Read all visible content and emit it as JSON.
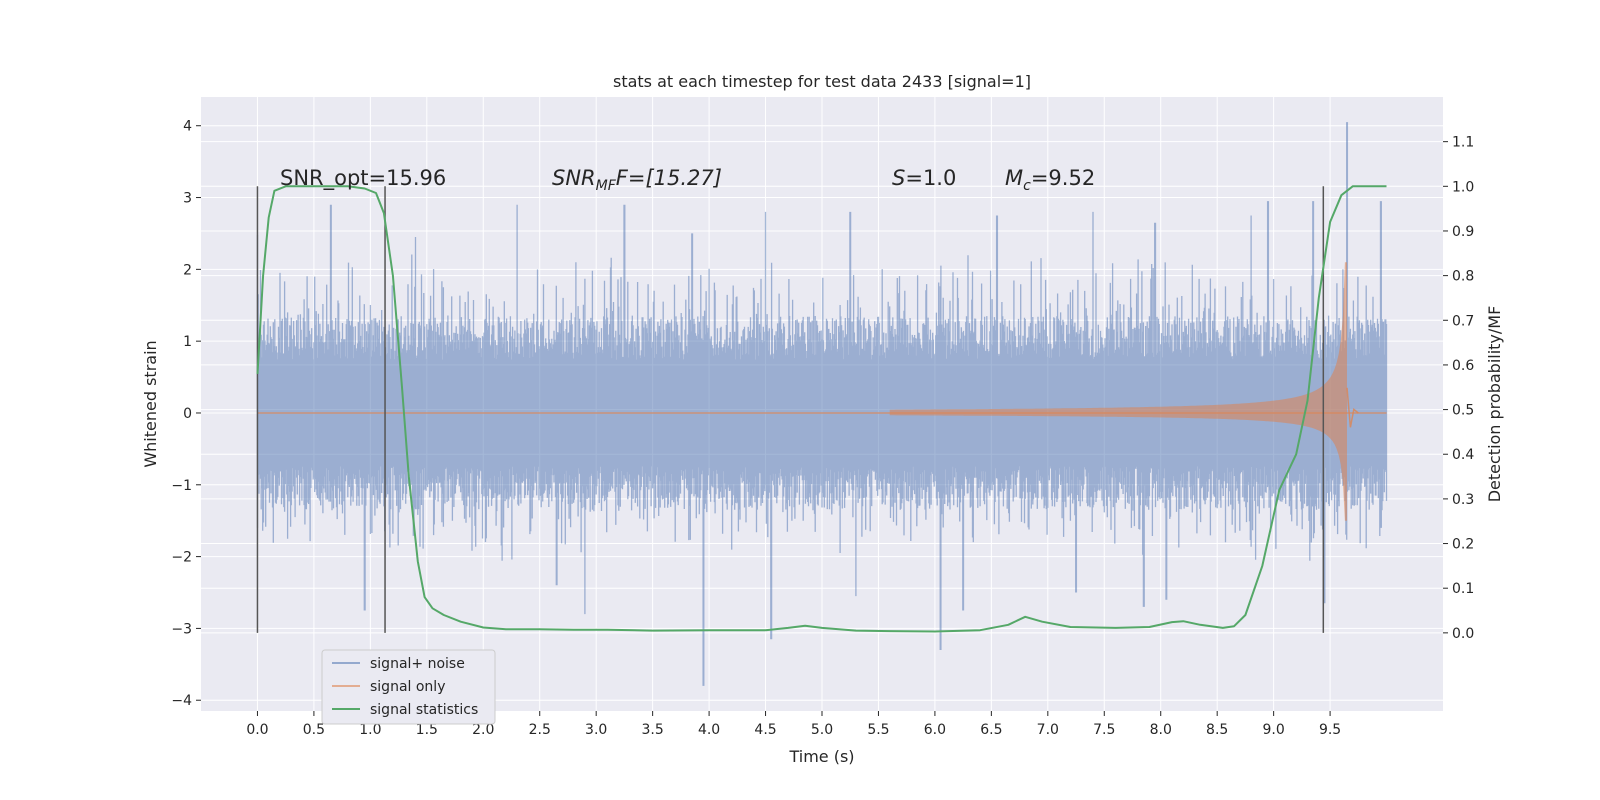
{
  "chart_data": {
    "type": "line",
    "title": "stats at each timestep for test data 2433 [signal=1]",
    "xlabel": "Time (s)",
    "ylabel": "Whitened strain",
    "y2label": "Detection probability/MF",
    "xlim": [
      -0.5,
      10.5
    ],
    "ylim": [
      -4.15,
      4.4
    ],
    "y2lim": [
      -0.175,
      1.2
    ],
    "xticks": [
      0.0,
      0.5,
      1.0,
      1.5,
      2.0,
      2.5,
      3.0,
      3.5,
      4.0,
      4.5,
      5.0,
      5.5,
      6.0,
      6.5,
      7.0,
      7.5,
      8.0,
      8.5,
      9.0,
      9.5
    ],
    "xtick_labels": [
      "0.0",
      "0.5",
      "1.0",
      "1.5",
      "2.0",
      "2.5",
      "3.0",
      "3.5",
      "4.0",
      "4.5",
      "5.0",
      "5.5",
      "6.0",
      "6.5",
      "7.0",
      "7.5",
      "8.0",
      "8.5",
      "9.0",
      "9.5"
    ],
    "yticks": [
      -4,
      -3,
      -2,
      -1,
      0,
      1,
      2,
      3,
      4
    ],
    "ytick_labels": [
      "−4",
      "−3",
      "−2",
      "−1",
      "0",
      "1",
      "2",
      "3",
      "4"
    ],
    "y2ticks": [
      0.0,
      0.1,
      0.2,
      0.3,
      0.4,
      0.5,
      0.6,
      0.7,
      0.8,
      0.9,
      1.0,
      1.1
    ],
    "y2tick_labels": [
      "0.0",
      "0.1",
      "0.2",
      "0.3",
      "0.4",
      "0.5",
      "0.6",
      "0.7",
      "0.8",
      "0.9",
      "1.0",
      "1.1"
    ],
    "grid": true,
    "legend_position": "lower-left",
    "series": [
      {
        "name": "signal+ noise",
        "color": "#4c72b0",
        "kind": "noise-envelope",
        "x_range": [
          0.0,
          10.0
        ],
        "core_amplitude": 1.35,
        "max_spikes": [
          [
            0.0,
            2.48
          ],
          [
            0.2,
            1.95
          ],
          [
            0.65,
            2.9
          ],
          [
            1.4,
            2.45
          ],
          [
            2.3,
            2.9
          ],
          [
            3.25,
            2.9
          ],
          [
            3.85,
            2.5
          ],
          [
            4.5,
            2.8
          ],
          [
            5.25,
            2.8
          ],
          [
            6.55,
            2.75
          ],
          [
            7.4,
            2.8
          ],
          [
            7.95,
            2.65
          ],
          [
            8.8,
            2.75
          ],
          [
            8.95,
            2.95
          ],
          [
            9.35,
            2.95
          ],
          [
            9.65,
            4.05
          ],
          [
            9.95,
            2.95
          ]
        ],
        "min_spikes": [
          [
            0.0,
            -1.6
          ],
          [
            0.95,
            -2.75
          ],
          [
            2.65,
            -2.4
          ],
          [
            2.9,
            -2.8
          ],
          [
            3.95,
            -3.8
          ],
          [
            4.55,
            -3.15
          ],
          [
            5.3,
            -2.55
          ],
          [
            6.05,
            -3.3
          ],
          [
            6.25,
            -2.75
          ],
          [
            7.25,
            -2.5
          ],
          [
            7.85,
            -2.7
          ],
          [
            8.05,
            -2.6
          ],
          [
            9.45,
            -2.65
          ],
          [
            9.95,
            -1.6
          ]
        ]
      },
      {
        "name": "signal only",
        "color": "#dd8452",
        "kind": "chirp",
        "onset": 5.6,
        "merger": 9.65,
        "peak_positive": 2.1,
        "peak_negative": -1.5
      },
      {
        "name": "signal statistics",
        "color": "#55a868",
        "axis": "y2",
        "x": [
          0.0,
          0.05,
          0.1,
          0.15,
          0.25,
          0.4,
          0.6,
          0.8,
          0.95,
          1.05,
          1.12,
          1.2,
          1.28,
          1.34,
          1.42,
          1.48,
          1.55,
          1.65,
          1.8,
          2.0,
          2.2,
          2.5,
          2.8,
          3.1,
          3.5,
          4.0,
          4.5,
          4.7,
          4.85,
          5.0,
          5.3,
          5.6,
          6.0,
          6.4,
          6.65,
          6.8,
          6.95,
          7.2,
          7.6,
          7.9,
          8.1,
          8.2,
          8.35,
          8.55,
          8.65,
          8.75,
          8.9,
          9.05,
          9.2,
          9.3,
          9.4,
          9.5,
          9.6,
          9.7,
          9.8,
          9.9,
          10.0
        ],
        "values": [
          0.58,
          0.8,
          0.93,
          0.99,
          1.0,
          1.0,
          1.0,
          1.0,
          0.995,
          0.985,
          0.94,
          0.8,
          0.55,
          0.35,
          0.16,
          0.08,
          0.055,
          0.04,
          0.025,
          0.012,
          0.008,
          0.008,
          0.007,
          0.007,
          0.005,
          0.006,
          0.006,
          0.011,
          0.016,
          0.011,
          0.005,
          0.004,
          0.003,
          0.006,
          0.018,
          0.036,
          0.025,
          0.013,
          0.011,
          0.013,
          0.024,
          0.026,
          0.018,
          0.011,
          0.015,
          0.04,
          0.15,
          0.32,
          0.4,
          0.52,
          0.75,
          0.92,
          0.98,
          1.0,
          1.0,
          1.0,
          1.0
        ]
      }
    ],
    "vlines": [
      {
        "x": 0.0,
        "y2_range": [
          0.0,
          1.0
        ],
        "color": "#555555"
      },
      {
        "x": 1.13,
        "y2_range": [
          0.0,
          1.0
        ],
        "color": "#555555"
      },
      {
        "x": 9.44,
        "y2_range": [
          0.0,
          1.0
        ],
        "color": "#555555"
      }
    ],
    "annotations": [
      {
        "id": "snr-opt",
        "text": "SNR_opt=15.96"
      },
      {
        "id": "snr-mf",
        "main": "SNR",
        "sub": "MF",
        "suffix": "F=[15.27]"
      },
      {
        "id": "s-stat",
        "italic": "S",
        "suffix": "=1.0"
      },
      {
        "id": "mc",
        "main": "M",
        "sub": "c",
        "suffix": "=9.52"
      }
    ]
  },
  "colors": {
    "plot_background": "#eaeaf2",
    "grid": "#ffffff",
    "text": "#262626"
  }
}
